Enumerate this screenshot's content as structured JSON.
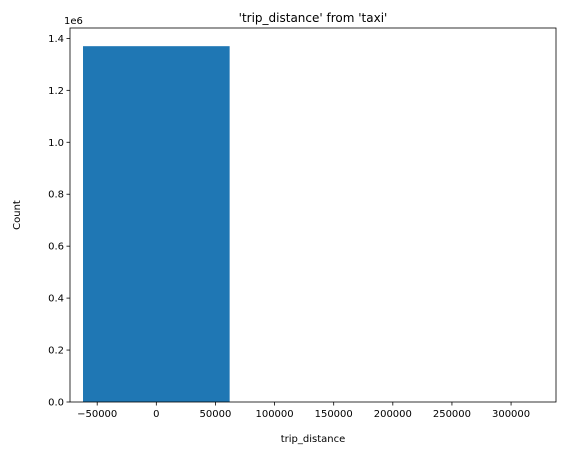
{
  "chart_data": {
    "type": "bar",
    "title": "'trip_distance' from 'taxi'",
    "xlabel": "trip_distance",
    "ylabel": "Count",
    "y_offset_label": "1e6",
    "bars": [
      {
        "x_start": -62000,
        "x_end": 62000,
        "value": 1370000
      }
    ],
    "xlim": [
      -73000,
      338000
    ],
    "ylim": [
      0,
      1440000
    ],
    "xticks": [
      {
        "value": -50000,
        "label": "−50000"
      },
      {
        "value": 0,
        "label": "0"
      },
      {
        "value": 50000,
        "label": "50000"
      },
      {
        "value": 100000,
        "label": "100000"
      },
      {
        "value": 150000,
        "label": "150000"
      },
      {
        "value": 200000,
        "label": "200000"
      },
      {
        "value": 250000,
        "label": "250000"
      },
      {
        "value": 300000,
        "label": "300000"
      }
    ],
    "yticks": [
      {
        "value": 0,
        "label": "0.0"
      },
      {
        "value": 200000,
        "label": "0.2"
      },
      {
        "value": 400000,
        "label": "0.4"
      },
      {
        "value": 600000,
        "label": "0.6"
      },
      {
        "value": 800000,
        "label": "0.8"
      },
      {
        "value": 1000000,
        "label": "1.0"
      },
      {
        "value": 1200000,
        "label": "1.2"
      },
      {
        "value": 1400000,
        "label": "1.4"
      }
    ],
    "bar_color": "#1f77b4",
    "grid": false,
    "legend": "none"
  }
}
